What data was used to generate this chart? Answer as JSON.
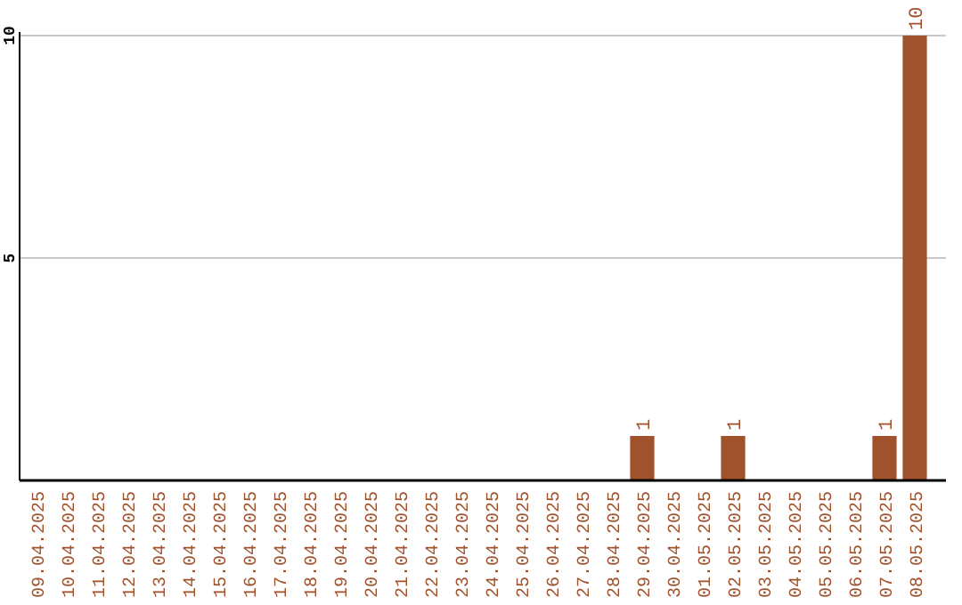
{
  "chart_data": {
    "type": "bar",
    "categories": [
      "09.04.2025",
      "10.04.2025",
      "11.04.2025",
      "12.04.2025",
      "13.04.2025",
      "14.04.2025",
      "15.04.2025",
      "16.04.2025",
      "17.04.2025",
      "18.04.2025",
      "19.04.2025",
      "20.04.2025",
      "21.04.2025",
      "22.04.2025",
      "23.04.2025",
      "24.04.2025",
      "25.04.2025",
      "26.04.2025",
      "27.04.2025",
      "28.04.2025",
      "29.04.2025",
      "30.04.2025",
      "01.05.2025",
      "02.05.2025",
      "03.05.2025",
      "04.05.2025",
      "05.05.2025",
      "06.05.2025",
      "07.05.2025",
      "08.05.2025"
    ],
    "values": [
      0,
      0,
      0,
      0,
      0,
      0,
      0,
      0,
      0,
      0,
      0,
      0,
      0,
      0,
      0,
      0,
      0,
      0,
      0,
      0,
      1,
      0,
      0,
      1,
      0,
      0,
      0,
      0,
      1,
      10
    ],
    "value_labels": [
      null,
      null,
      null,
      null,
      null,
      null,
      null,
      null,
      null,
      null,
      null,
      null,
      null,
      null,
      null,
      null,
      null,
      null,
      null,
      null,
      "1",
      null,
      null,
      "1",
      null,
      null,
      null,
      null,
      "1",
      "10"
    ],
    "color": "#a0522d",
    "ylim": [
      0,
      10
    ],
    "yticks": [
      5,
      10
    ],
    "grid": "y"
  }
}
